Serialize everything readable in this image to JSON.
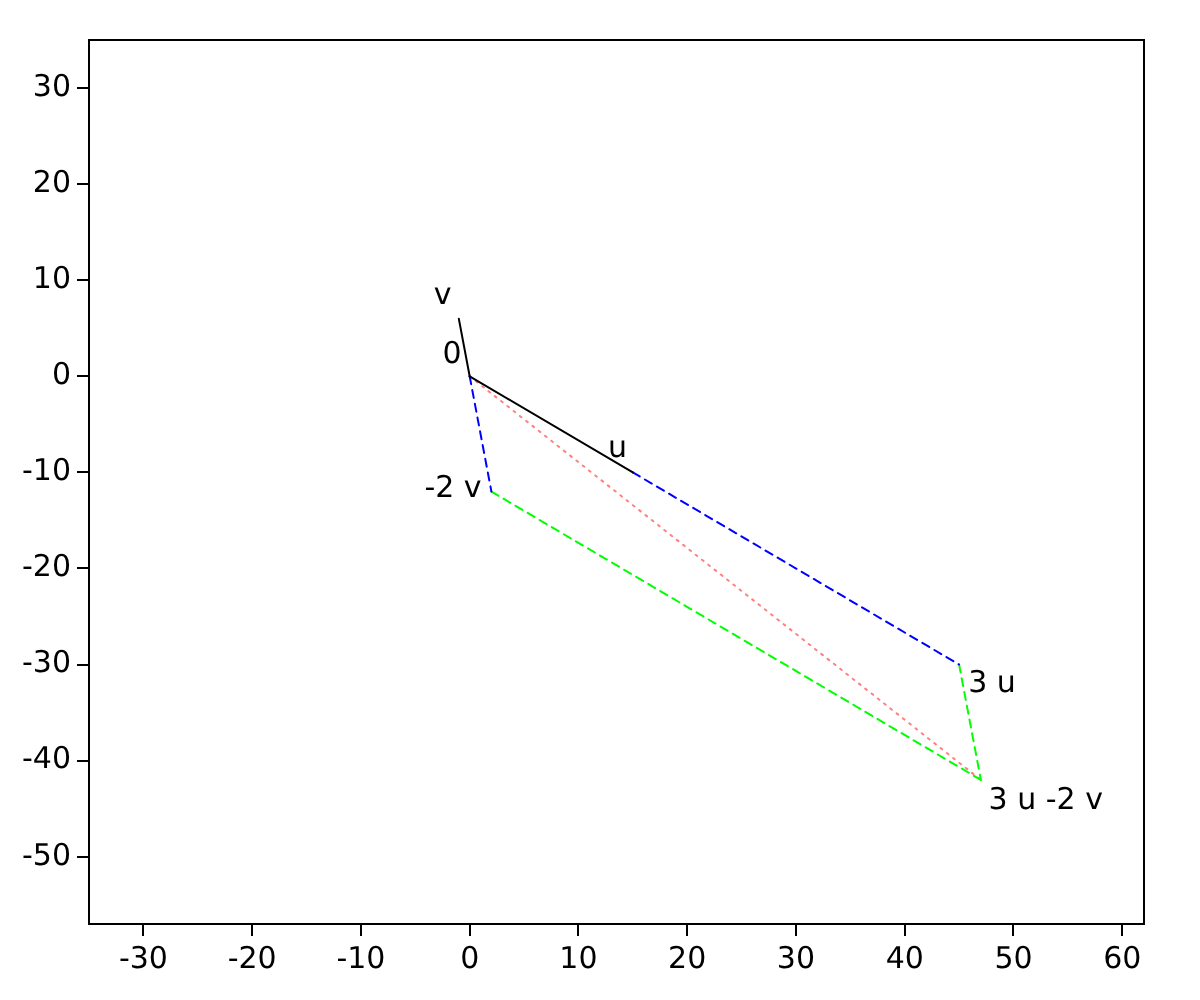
{
  "chart_data": {
    "type": "line",
    "xlim": [
      -35,
      62
    ],
    "ylim": [
      -57,
      35
    ],
    "xticks": [
      -30,
      -20,
      -10,
      0,
      10,
      20,
      30,
      40,
      50,
      60
    ],
    "yticks": [
      -50,
      -40,
      -30,
      -20,
      -10,
      0,
      10,
      20,
      30
    ],
    "grid": false,
    "legend": false,
    "marker": "none",
    "series": [
      {
        "x": [
          0,
          15
        ],
        "values": [
          0,
          -10
        ],
        "color": "#000000",
        "line_style": "solid"
      },
      {
        "x": [
          0,
          -1
        ],
        "values": [
          0,
          6
        ],
        "color": "#000000",
        "line_style": "solid"
      },
      {
        "x": [
          0,
          2
        ],
        "values": [
          0,
          -12
        ],
        "color": "#0000ff",
        "line_style": "dashed"
      },
      {
        "x": [
          15,
          45
        ],
        "values": [
          -10,
          -30
        ],
        "color": "#0000ff",
        "line_style": "dashed"
      },
      {
        "x": [
          2,
          47
        ],
        "values": [
          -12,
          -42
        ],
        "color": "#00ff00",
        "line_style": "dashed"
      },
      {
        "x": [
          45,
          47
        ],
        "values": [
          -30,
          -42
        ],
        "color": "#00ff00",
        "line_style": "dashed"
      },
      {
        "x": [
          0,
          47
        ],
        "values": [
          0,
          -42
        ],
        "color": "#ff8080",
        "line_style": "dotted"
      }
    ],
    "annotations": [
      {
        "text": "0",
        "x": 0,
        "y": 0
      },
      {
        "text": "v",
        "x": -1,
        "y": 6
      },
      {
        "text": "u",
        "x": 15,
        "y": -10
      },
      {
        "text": "-2 v",
        "x": 2,
        "y": -12
      },
      {
        "text": "3 u",
        "x": 45,
        "y": -30
      },
      {
        "text": "3 u -2 v",
        "x": 47,
        "y": -42
      }
    ]
  }
}
